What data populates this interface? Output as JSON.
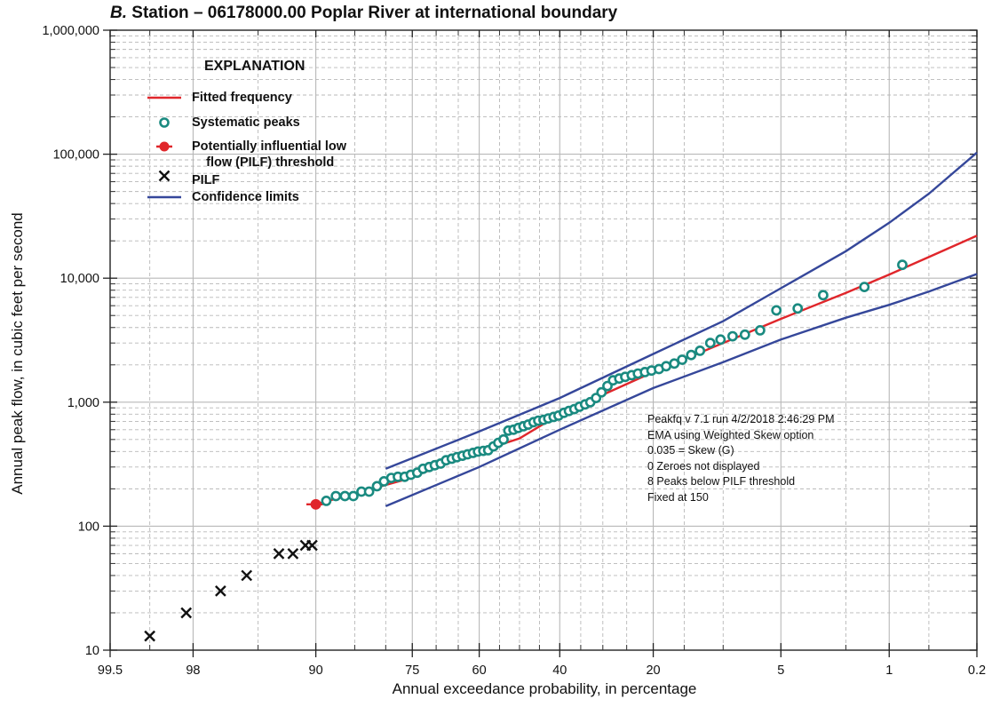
{
  "chart_data": {
    "type": "scatter",
    "title_prefix": "B.",
    "title": "Station – 06178000.00  Poplar River at international boundary",
    "xlabel": "Annual exceedance probability, in percentage",
    "ylabel": "Annual peak flow, in cubic feet per second",
    "x_scale": "normal-probability (percent, reversed)",
    "y_scale": "log",
    "xlim": [
      99.5,
      0.2
    ],
    "ylim": [
      10,
      1000000
    ],
    "grid": true,
    "x_ticks": [
      99.5,
      98,
      90,
      75,
      60,
      40,
      20,
      5,
      1,
      0.2
    ],
    "x_tick_labels": [
      "99.5",
      "98",
      "90",
      "75",
      "60",
      "40",
      "20",
      "5",
      "1",
      "0.2"
    ],
    "y_ticks": [
      10,
      100,
      1000,
      10000,
      100000,
      1000000
    ],
    "y_tick_labels": [
      "10",
      "100",
      "1,000",
      "10,000",
      "100,000",
      "1,000,000"
    ],
    "legend_title": "EXPLANATION",
    "legend_position": "top-left",
    "legend": [
      {
        "label": "Fitted frequency",
        "symbol": "red-line"
      },
      {
        "label": "Systematic peaks",
        "symbol": "teal-circle"
      },
      {
        "label": "Potentially influential low\n    flow (PILF) threshold",
        "symbol": "red-dot-line"
      },
      {
        "label": "PILF",
        "symbol": "black-x"
      },
      {
        "label": "Confidence limits",
        "symbol": "blue-line"
      }
    ],
    "annotation": [
      "Peakfq v 7.1 run 4/2/2018 2:46:29 PM",
      "EMA using Weighted Skew option",
      "0.035 = Skew (G)",
      "0 Zeroes not displayed",
      "8 Peaks below PILF threshold",
      "Fixed at 150"
    ],
    "colors": {
      "fitted": "#e0262b",
      "systematic": "#1a8a80",
      "pilf_threshold": "#e0262b",
      "pilf": "#111111",
      "confidence": "#35479a",
      "grid": "#b8b8b8"
    },
    "series": [
      {
        "name": "Fitted frequency",
        "points": [
          [
            90,
            150
          ],
          [
            76.5,
            237
          ],
          [
            60,
            400
          ],
          [
            50,
            510
          ],
          [
            40,
            800
          ],
          [
            20,
            1750
          ],
          [
            10,
            3000
          ],
          [
            5,
            4700
          ],
          [
            2,
            7600
          ],
          [
            1,
            10700
          ],
          [
            0.5,
            14800
          ],
          [
            0.2,
            22000
          ]
        ]
      },
      {
        "name": "Confidence limits upper",
        "points": [
          [
            80,
            290
          ],
          [
            60,
            580
          ],
          [
            40,
            1080
          ],
          [
            20,
            2450
          ],
          [
            10,
            4500
          ],
          [
            5,
            8300
          ],
          [
            2,
            16500
          ],
          [
            1,
            28000
          ],
          [
            0.5,
            48000
          ],
          [
            0.2,
            103000
          ]
        ]
      },
      {
        "name": "Confidence limits lower",
        "points": [
          [
            80,
            145
          ],
          [
            60,
            300
          ],
          [
            40,
            600
          ],
          [
            20,
            1300
          ],
          [
            10,
            2100
          ],
          [
            5,
            3200
          ],
          [
            2,
            4800
          ],
          [
            1,
            6100
          ],
          [
            0.5,
            7800
          ],
          [
            0.2,
            10800
          ]
        ]
      },
      {
        "name": "Systematic peaks",
        "points": [
          [
            88.8,
            160
          ],
          [
            87.6,
            175
          ],
          [
            86.4,
            175
          ],
          [
            85.2,
            175
          ],
          [
            84.0,
            190
          ],
          [
            82.8,
            190
          ],
          [
            81.5,
            210
          ],
          [
            80.3,
            230
          ],
          [
            79.0,
            245
          ],
          [
            77.8,
            250
          ],
          [
            76.5,
            250
          ],
          [
            75.3,
            260
          ],
          [
            74.0,
            270
          ],
          [
            72.8,
            290
          ],
          [
            71.5,
            300
          ],
          [
            70.3,
            310
          ],
          [
            69.0,
            320
          ],
          [
            67.8,
            340
          ],
          [
            66.5,
            350
          ],
          [
            65.3,
            360
          ],
          [
            64.0,
            370
          ],
          [
            62.8,
            380
          ],
          [
            61.5,
            390
          ],
          [
            60.3,
            400
          ],
          [
            59.0,
            405
          ],
          [
            57.8,
            410
          ],
          [
            56.5,
            440
          ],
          [
            55.3,
            470
          ],
          [
            54.0,
            500
          ],
          [
            52.8,
            590
          ],
          [
            51.5,
            600
          ],
          [
            50.3,
            620
          ],
          [
            49.0,
            640
          ],
          [
            47.8,
            660
          ],
          [
            46.5,
            690
          ],
          [
            45.3,
            710
          ],
          [
            44.0,
            720
          ],
          [
            42.8,
            740
          ],
          [
            41.5,
            760
          ],
          [
            40.3,
            780
          ],
          [
            39.0,
            820
          ],
          [
            37.8,
            850
          ],
          [
            36.5,
            880
          ],
          [
            35.3,
            920
          ],
          [
            34.0,
            960
          ],
          [
            32.8,
            1000
          ],
          [
            31.5,
            1080
          ],
          [
            30.3,
            1200
          ],
          [
            29.0,
            1350
          ],
          [
            27.8,
            1500
          ],
          [
            26.5,
            1550
          ],
          [
            25.3,
            1600
          ],
          [
            24.0,
            1650
          ],
          [
            22.8,
            1700
          ],
          [
            21.5,
            1750
          ],
          [
            20.3,
            1800
          ],
          [
            19.0,
            1850
          ],
          [
            17.8,
            1950
          ],
          [
            16.5,
            2050
          ],
          [
            15.3,
            2200
          ],
          [
            14.0,
            2400
          ],
          [
            12.8,
            2600
          ],
          [
            11.5,
            3000
          ],
          [
            10.3,
            3200
          ],
          [
            9.0,
            3400
          ],
          [
            7.8,
            3500
          ],
          [
            6.5,
            3800
          ],
          [
            5.3,
            5500
          ],
          [
            4.0,
            5700
          ],
          [
            2.8,
            7300
          ],
          [
            1.5,
            8500
          ],
          [
            0.8,
            12800
          ]
        ]
      },
      {
        "name": "Potentially influential low flow (PILF) threshold",
        "points": [
          [
            90,
            150
          ]
        ],
        "line": [
          [
            91,
            150
          ],
          [
            89.2,
            150
          ]
        ]
      },
      {
        "name": "PILF",
        "points": [
          [
            99.0,
            13
          ],
          [
            98.2,
            20
          ],
          [
            97.0,
            30
          ],
          [
            95.7,
            40
          ],
          [
            93.5,
            60
          ],
          [
            92.3,
            60
          ],
          [
            91.1,
            70
          ],
          [
            90.4,
            70
          ]
        ]
      }
    ]
  }
}
